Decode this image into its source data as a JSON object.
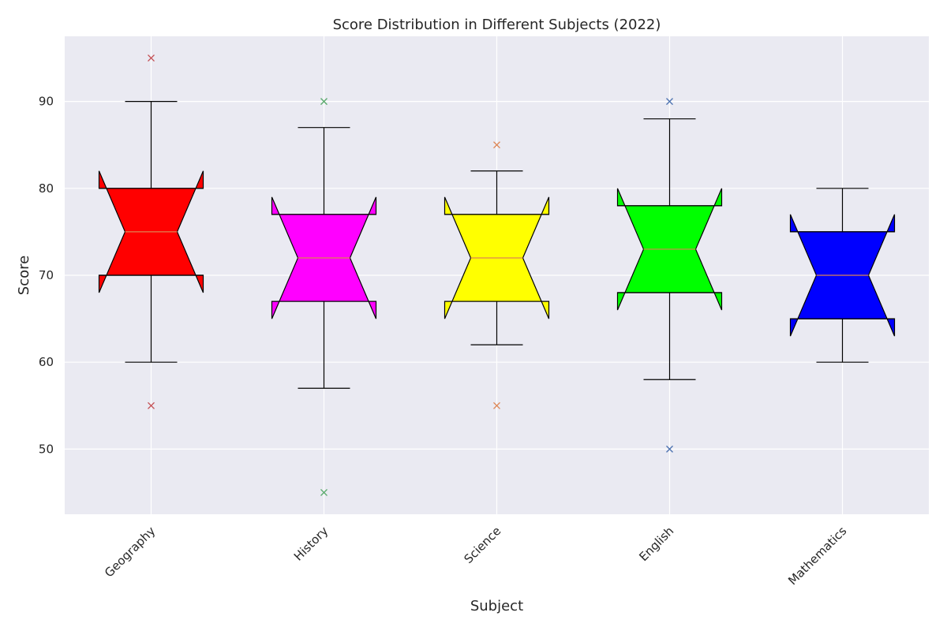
{
  "chart_data": {
    "type": "boxplot",
    "title": "Score Distribution in Different Subjects (2022)",
    "xlabel": "Subject",
    "ylabel": "Score",
    "ylim": [
      42.5,
      97.5
    ],
    "yticks": [
      50,
      60,
      70,
      80,
      90
    ],
    "grid": true,
    "notched": true,
    "background": "#eaeaf2",
    "categories": [
      "Geography",
      "History",
      "Science",
      "English",
      "Mathematics"
    ],
    "boxes": [
      {
        "name": "Geography",
        "whisker_low": 60,
        "q1": 70,
        "median": 75,
        "q3": 80,
        "whisker_high": 90,
        "notch_low": 70,
        "notch_high": 80,
        "outliers": [
          95,
          55
        ],
        "fill": "#ff0000",
        "outlier_color": "#c44e52"
      },
      {
        "name": "History",
        "whisker_low": 57,
        "q1": 67,
        "median": 72,
        "q3": 77,
        "whisker_high": 87,
        "notch_low": 67,
        "notch_high": 77,
        "outliers": [
          90,
          45
        ],
        "fill": "#ff00ff",
        "outlier_color": "#55a868"
      },
      {
        "name": "Science",
        "whisker_low": 62,
        "q1": 67,
        "median": 72,
        "q3": 77,
        "whisker_high": 82,
        "notch_low": 67,
        "notch_high": 77,
        "outliers": [
          85,
          55
        ],
        "fill": "#ffff00",
        "outlier_color": "#dd8452"
      },
      {
        "name": "English",
        "whisker_low": 58,
        "q1": 68,
        "median": 73,
        "q3": 78,
        "whisker_high": 88,
        "notch_low": 68,
        "notch_high": 78,
        "outliers": [
          90,
          50
        ],
        "fill": "#00ff00",
        "outlier_color": "#4c72b0"
      },
      {
        "name": "Mathematics",
        "whisker_low": 60,
        "q1": 65,
        "median": 70,
        "q3": 75,
        "whisker_high": 80,
        "notch_low": 65,
        "notch_high": 75,
        "outliers": [],
        "fill": "#0000ff",
        "outlier_color": "#4c72b0"
      }
    ],
    "median_color": "#dd8452"
  }
}
